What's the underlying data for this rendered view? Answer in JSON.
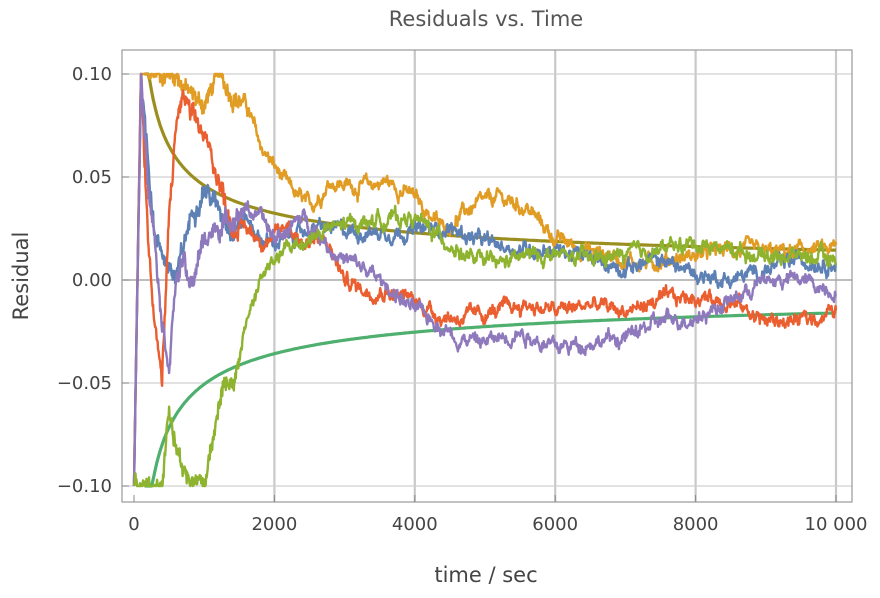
{
  "chart_data": {
    "type": "line",
    "title": "Residuals vs. Time",
    "xlabel": "time / sec",
    "ylabel": "Residual",
    "xlim": [
      0,
      10000
    ],
    "ylim": [
      -0.1,
      0.1
    ],
    "x_ticks": [
      0,
      2000,
      4000,
      6000,
      8000,
      10000
    ],
    "x_tick_labels": [
      "0",
      "2000",
      "4000",
      "6000",
      "8000",
      "10 000"
    ],
    "y_ticks": [
      -0.1,
      -0.05,
      0.0,
      0.05,
      0.1
    ],
    "y_tick_labels": [
      "−0.10",
      "−0.05",
      "0.00",
      "0.05",
      "0.10"
    ],
    "grid": true,
    "legend": "none",
    "series": [
      {
        "color": "#5E81B5",
        "style": "noisy",
        "x": [
          0,
          100,
          200,
          300,
          450,
          600,
          800,
          1000,
          1200,
          1400,
          1600,
          1800,
          2000,
          2300,
          2600,
          3000,
          3500,
          4000,
          4500,
          5000,
          5500,
          6000,
          6500,
          7000,
          7500,
          8000,
          8500,
          9000,
          9500,
          10000
        ],
        "values": [
          -0.1,
          0.1,
          0.06,
          0.02,
          0.01,
          0.0,
          0.03,
          0.045,
          0.035,
          0.025,
          0.03,
          0.02,
          0.018,
          0.022,
          0.025,
          0.024,
          0.023,
          0.024,
          0.025,
          0.018,
          0.015,
          0.015,
          0.01,
          0.006,
          0.01,
          0.003,
          0.0,
          0.005,
          0.01,
          0.008
        ]
      },
      {
        "color": "#E19C24",
        "style": "noisy",
        "x": [
          0,
          100,
          200,
          400,
          600,
          800,
          1000,
          1200,
          1400,
          1600,
          1800,
          2000,
          2200,
          2500,
          2800,
          3200,
          3600,
          4000,
          4400,
          4800,
          5200,
          5600,
          6000,
          6400,
          6800,
          7200,
          7600,
          8000,
          8500,
          9000,
          9500,
          10000
        ],
        "values": [
          -0.1,
          0.1,
          0.1,
          0.1,
          0.1,
          0.09,
          0.085,
          0.1,
          0.09,
          0.085,
          0.065,
          0.055,
          0.045,
          0.035,
          0.048,
          0.045,
          0.048,
          0.04,
          0.025,
          0.035,
          0.04,
          0.035,
          0.02,
          0.015,
          0.012,
          0.008,
          0.01,
          0.012,
          0.015,
          0.013,
          0.014,
          0.015
        ]
      },
      {
        "color": "#EA5E2F",
        "style": "noisy",
        "x": [
          0,
          100,
          200,
          300,
          400,
          500,
          600,
          700,
          800,
          1000,
          1200,
          1400,
          1600,
          1800,
          2000,
          2200,
          2400,
          2600,
          2800,
          3000,
          3300,
          3600,
          4000,
          4400,
          4800,
          5200,
          5600,
          6000,
          6500,
          7000,
          7500,
          8000,
          8500,
          9000,
          9500,
          10000
        ],
        "values": [
          -0.1,
          0.1,
          0.02,
          -0.02,
          -0.05,
          0.03,
          0.075,
          0.09,
          0.08,
          0.07,
          0.05,
          0.025,
          0.025,
          0.02,
          0.02,
          0.028,
          0.018,
          0.02,
          0.015,
          0.0,
          -0.005,
          -0.005,
          -0.01,
          -0.018,
          -0.018,
          -0.015,
          -0.012,
          -0.015,
          -0.012,
          -0.015,
          -0.01,
          -0.008,
          -0.01,
          -0.02,
          -0.02,
          -0.015
        ]
      },
      {
        "color": "#8F79BD",
        "style": "noisy",
        "x": [
          0,
          100,
          200,
          300,
          400,
          500,
          600,
          700,
          800,
          1000,
          1200,
          1400,
          1600,
          1800,
          2000,
          2200,
          2400,
          2600,
          2800,
          3000,
          3300,
          3600,
          4000,
          4300,
          4600,
          5000,
          5500,
          6000,
          6500,
          7000,
          7500,
          8000,
          8500,
          9000,
          9500,
          10000
        ],
        "values": [
          -0.1,
          0.1,
          0.05,
          0.02,
          -0.02,
          -0.04,
          0.0,
          0.01,
          -0.005,
          0.02,
          0.025,
          0.03,
          0.035,
          0.03,
          0.02,
          0.025,
          0.03,
          0.025,
          0.015,
          0.01,
          0.005,
          -0.003,
          -0.015,
          -0.02,
          -0.028,
          -0.03,
          -0.025,
          -0.033,
          -0.03,
          -0.028,
          -0.02,
          -0.018,
          -0.01,
          0.0,
          0.0,
          -0.005
        ]
      },
      {
        "color": "#8EB32F",
        "style": "noisy",
        "x": [
          0,
          100,
          200,
          300,
          400,
          500,
          600,
          700,
          800,
          900,
          1000,
          1100,
          1200,
          1300,
          1400,
          1600,
          1800,
          2000,
          2200,
          2500,
          2800,
          3200,
          3600,
          4000,
          4400,
          4800,
          5200,
          5600,
          6000,
          6500,
          7000,
          7500,
          8000,
          8500,
          9000,
          9500,
          10000
        ],
        "values": [
          -0.1,
          -0.1,
          -0.1,
          -0.1,
          -0.1,
          -0.06,
          -0.08,
          -0.09,
          -0.1,
          -0.095,
          -0.1,
          -0.08,
          -0.06,
          -0.05,
          -0.055,
          -0.02,
          0.0,
          0.01,
          0.015,
          0.02,
          0.025,
          0.028,
          0.03,
          0.03,
          0.02,
          0.01,
          0.008,
          0.012,
          0.012,
          0.01,
          0.012,
          0.015,
          0.018,
          0.015,
          0.012,
          0.012,
          0.01
        ]
      },
      {
        "color": "#9A8F1E",
        "style": "smooth",
        "formula": "+1.45/sqrt(t)"
      },
      {
        "color": "#4FAF6E",
        "style": "smooth",
        "formula": "-1.6/sqrt(t)"
      }
    ]
  }
}
